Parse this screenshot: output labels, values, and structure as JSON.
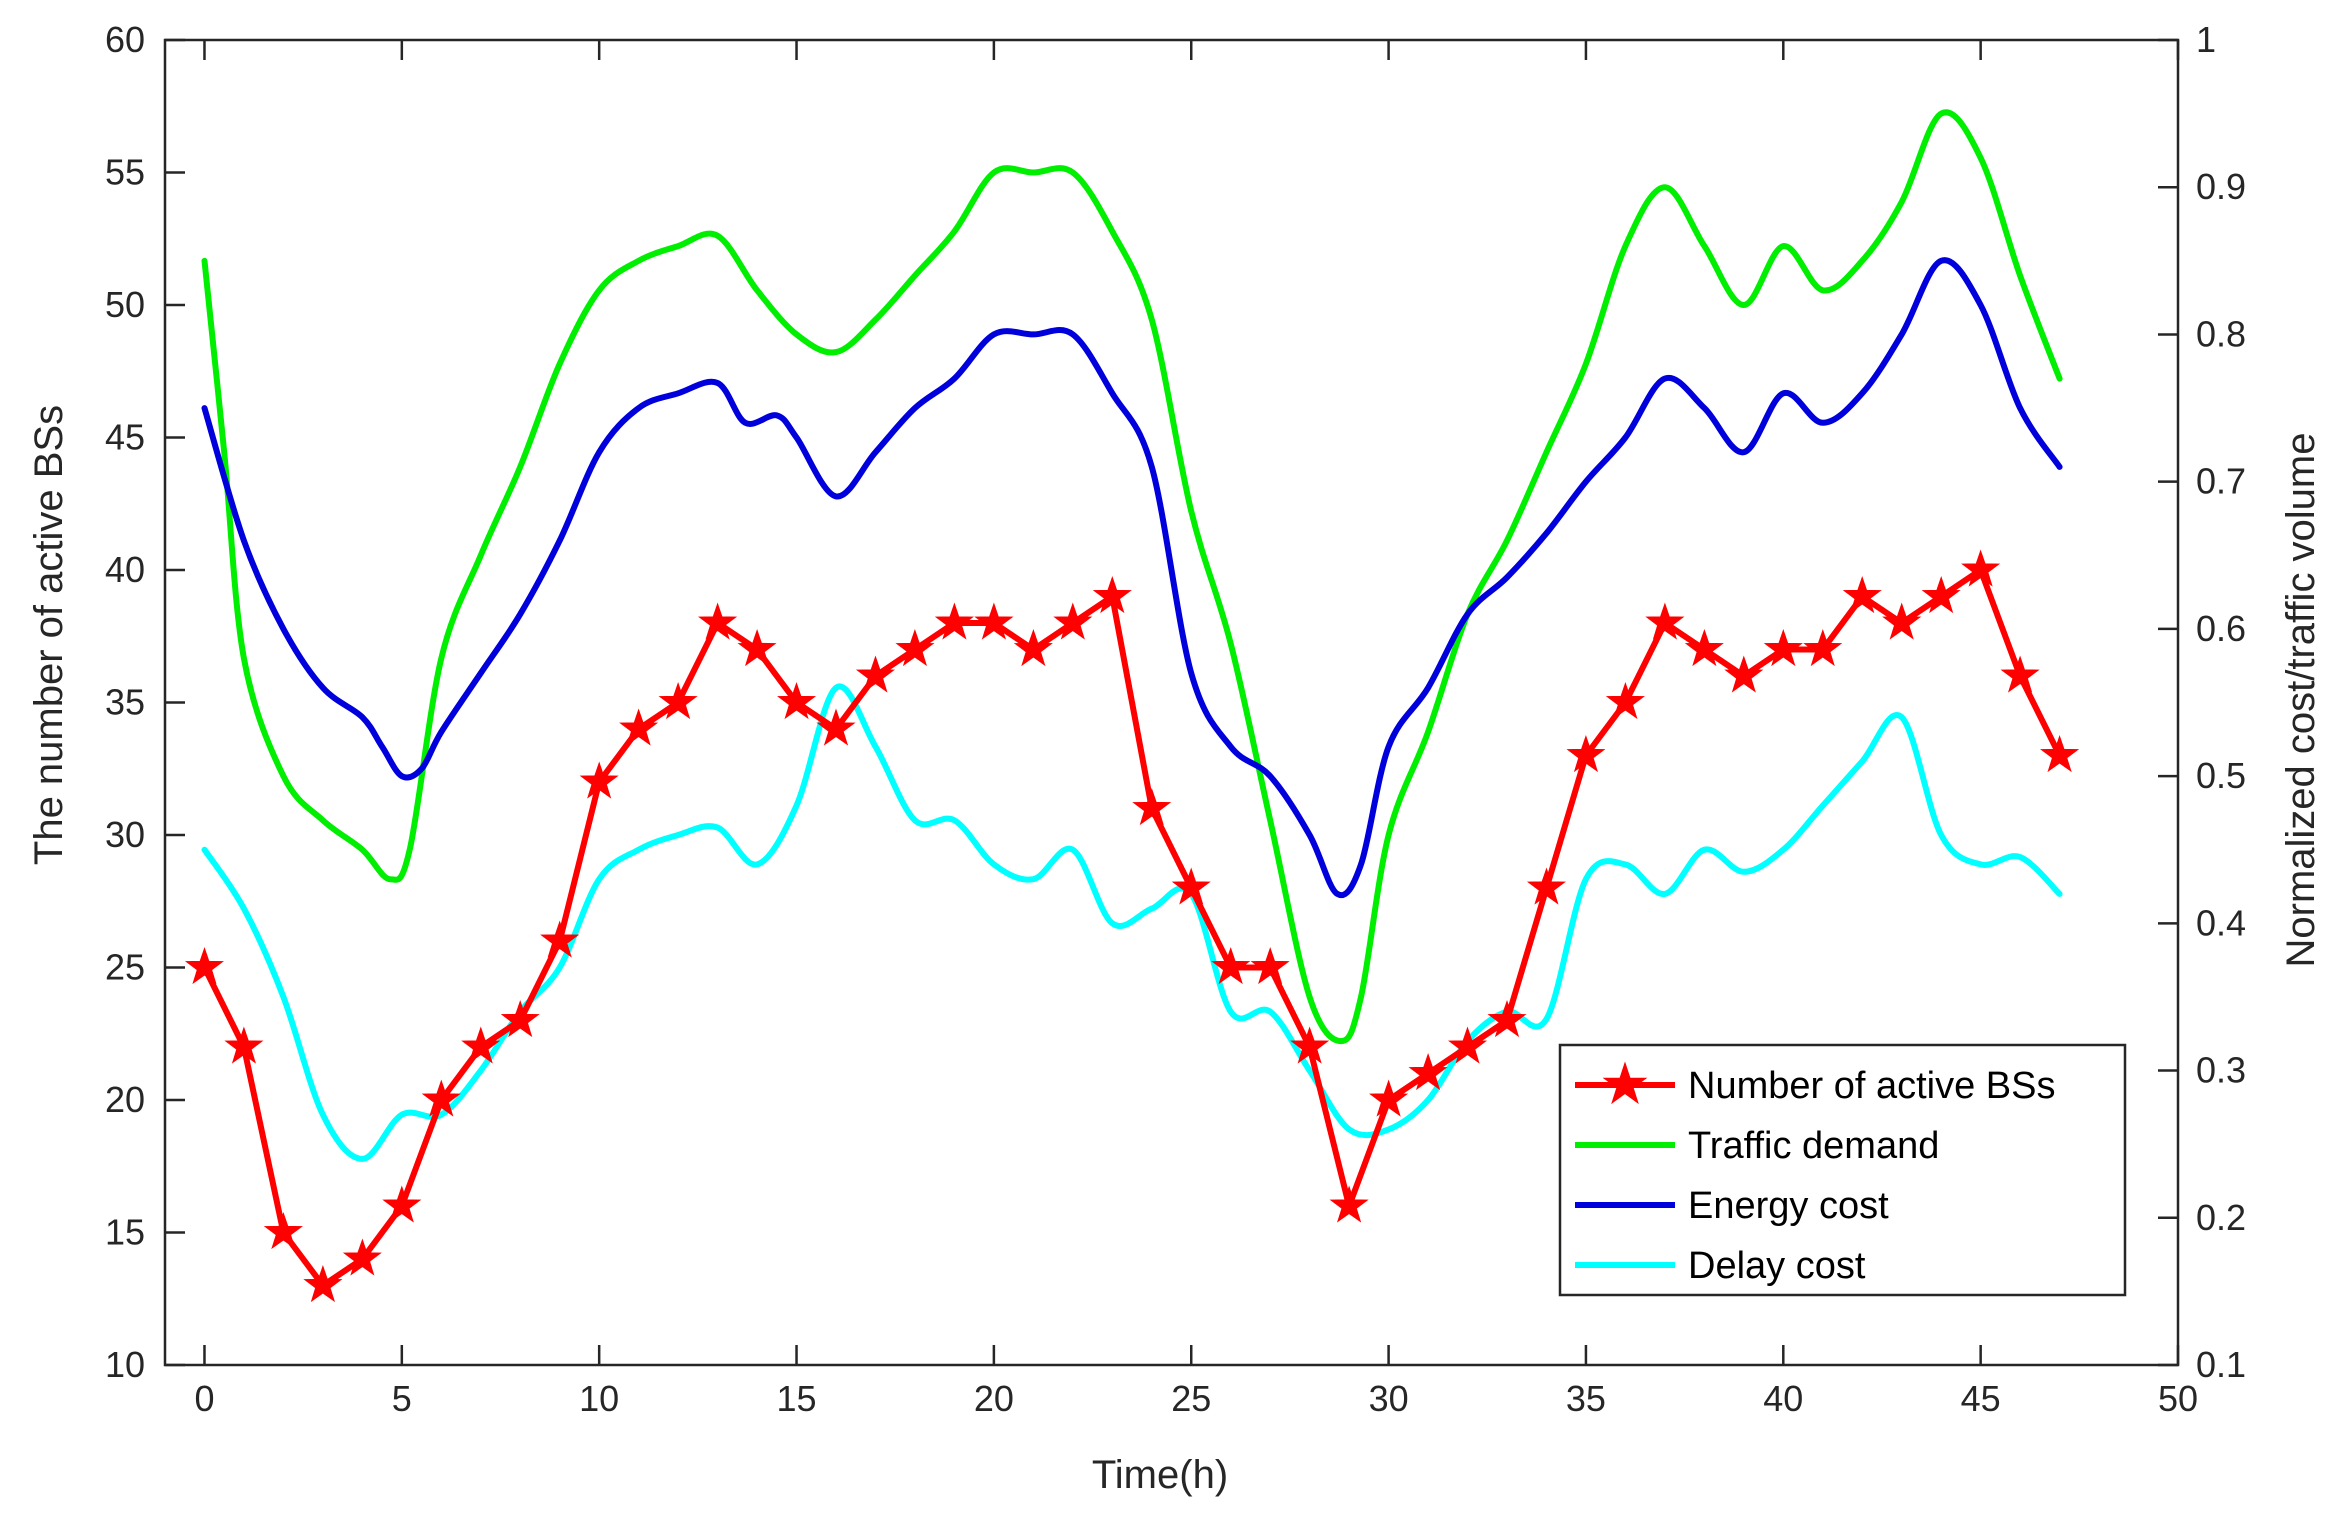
{
  "chart_data": {
    "type": "line",
    "xlabel": "Time(h)",
    "ylabel_left": "The number of active BSs",
    "ylabel_right": "Normalized cost/traffic volume",
    "xlim": [
      -1,
      50
    ],
    "ylim_left": [
      10,
      60
    ],
    "ylim_right": [
      0.1,
      1.0
    ],
    "xticks": [
      0,
      5,
      10,
      15,
      20,
      25,
      30,
      35,
      40,
      45,
      50
    ],
    "yticks_left": [
      10,
      15,
      20,
      25,
      30,
      35,
      40,
      45,
      50,
      55,
      60
    ],
    "yticks_right": [
      "0.1",
      "0.2",
      "0.3",
      "0.4",
      "0.5",
      "0.6",
      "0.7",
      "0.8",
      "0.9",
      "1"
    ],
    "legend_position": "bottom-right",
    "grid": false,
    "series": [
      {
        "name": "Number of active BSs",
        "axis": "left",
        "color": "#ff0000",
        "marker": "star",
        "x": [
          0,
          1,
          2,
          3,
          4,
          5,
          6,
          7,
          8,
          9,
          10,
          11,
          12,
          13,
          14,
          15,
          16,
          17,
          18,
          19,
          20,
          21,
          22,
          23,
          24,
          25,
          26,
          27,
          28,
          29,
          30,
          31,
          32,
          33,
          34,
          35,
          36,
          37,
          38,
          39,
          40,
          41,
          42,
          43,
          44,
          45,
          46,
          47
        ],
        "values": [
          25,
          22,
          15,
          13,
          14,
          16,
          20,
          22,
          23,
          26,
          32,
          34,
          35,
          38,
          37,
          35,
          34,
          36,
          37,
          38,
          38,
          37,
          38,
          39,
          31,
          28,
          25,
          25,
          22,
          16,
          20,
          21,
          22,
          23,
          28,
          33,
          35,
          38,
          37,
          36,
          37,
          37,
          39,
          38,
          39,
          40,
          36,
          33
        ]
      },
      {
        "name": "Traffic demand",
        "axis": "right",
        "color": "#00ee00",
        "x": [
          0,
          0.5,
          1,
          2,
          3,
          4,
          4.7,
          5.2,
          6,
          7,
          8,
          9,
          10,
          11,
          12,
          13,
          14,
          15,
          16,
          17,
          18,
          19,
          20,
          21,
          22,
          23,
          24,
          25,
          26,
          27,
          28,
          28.8,
          29.3,
          30,
          31,
          32,
          33,
          34,
          35,
          36,
          37,
          38,
          39,
          40,
          41,
          42,
          43,
          44,
          45,
          46,
          47
        ],
        "values": [
          0.85,
          0.72,
          0.58,
          0.5,
          0.47,
          0.45,
          0.43,
          0.45,
          0.58,
          0.65,
          0.71,
          0.78,
          0.83,
          0.85,
          0.86,
          0.867,
          0.83,
          0.8,
          0.788,
          0.81,
          0.84,
          0.87,
          0.91,
          0.91,
          0.91,
          0.87,
          0.81,
          0.68,
          0.59,
          0.47,
          0.35,
          0.32,
          0.35,
          0.46,
          0.53,
          0.61,
          0.66,
          0.72,
          0.78,
          0.86,
          0.9,
          0.86,
          0.82,
          0.86,
          0.83,
          0.85,
          0.89,
          0.95,
          0.92,
          0.84,
          0.77
        ]
      },
      {
        "name": "Energy cost",
        "axis": "right",
        "color": "#0000dd",
        "x": [
          0,
          1,
          2,
          3,
          4,
          4.5,
          5,
          5.5,
          6,
          7,
          8,
          9,
          10,
          11,
          12,
          13,
          13.7,
          14.5,
          15,
          16,
          17,
          18,
          19,
          20,
          21,
          22,
          23,
          24,
          25,
          26,
          27,
          28,
          28.7,
          29.3,
          30,
          31,
          32,
          33,
          34,
          35,
          36,
          37,
          38,
          39,
          40,
          41,
          42,
          43,
          44,
          45,
          46,
          47
        ],
        "values": [
          0.75,
          0.66,
          0.6,
          0.56,
          0.54,
          0.52,
          0.5,
          0.505,
          0.53,
          0.57,
          0.61,
          0.66,
          0.72,
          0.75,
          0.76,
          0.767,
          0.74,
          0.745,
          0.73,
          0.69,
          0.72,
          0.75,
          0.77,
          0.8,
          0.8,
          0.8,
          0.76,
          0.71,
          0.57,
          0.52,
          0.5,
          0.46,
          0.42,
          0.44,
          0.52,
          0.56,
          0.61,
          0.635,
          0.665,
          0.7,
          0.73,
          0.77,
          0.75,
          0.72,
          0.76,
          0.74,
          0.76,
          0.8,
          0.85,
          0.82,
          0.75,
          0.71
        ]
      },
      {
        "name": "Delay cost",
        "axis": "right",
        "color": "#00ffff",
        "x": [
          0,
          1,
          2,
          3,
          4,
          5,
          6,
          7,
          8,
          9,
          10,
          11,
          12,
          13,
          14,
          15,
          16,
          17,
          18,
          19,
          20,
          21,
          22,
          23,
          24,
          25,
          26,
          27,
          28,
          29,
          30,
          31,
          32,
          33,
          34,
          35,
          36,
          37,
          38,
          39,
          40,
          41,
          42,
          43,
          44,
          45,
          46,
          47
        ],
        "values": [
          0.45,
          0.41,
          0.35,
          0.27,
          0.24,
          0.27,
          0.27,
          0.3,
          0.34,
          0.37,
          0.43,
          0.45,
          0.46,
          0.465,
          0.44,
          0.48,
          0.56,
          0.52,
          0.47,
          0.47,
          0.44,
          0.43,
          0.45,
          0.4,
          0.41,
          0.42,
          0.34,
          0.34,
          0.3,
          0.26,
          0.26,
          0.28,
          0.32,
          0.34,
          0.335,
          0.43,
          0.44,
          0.42,
          0.45,
          0.435,
          0.45,
          0.48,
          0.51,
          0.54,
          0.46,
          0.44,
          0.445,
          0.42
        ]
      }
    ]
  }
}
